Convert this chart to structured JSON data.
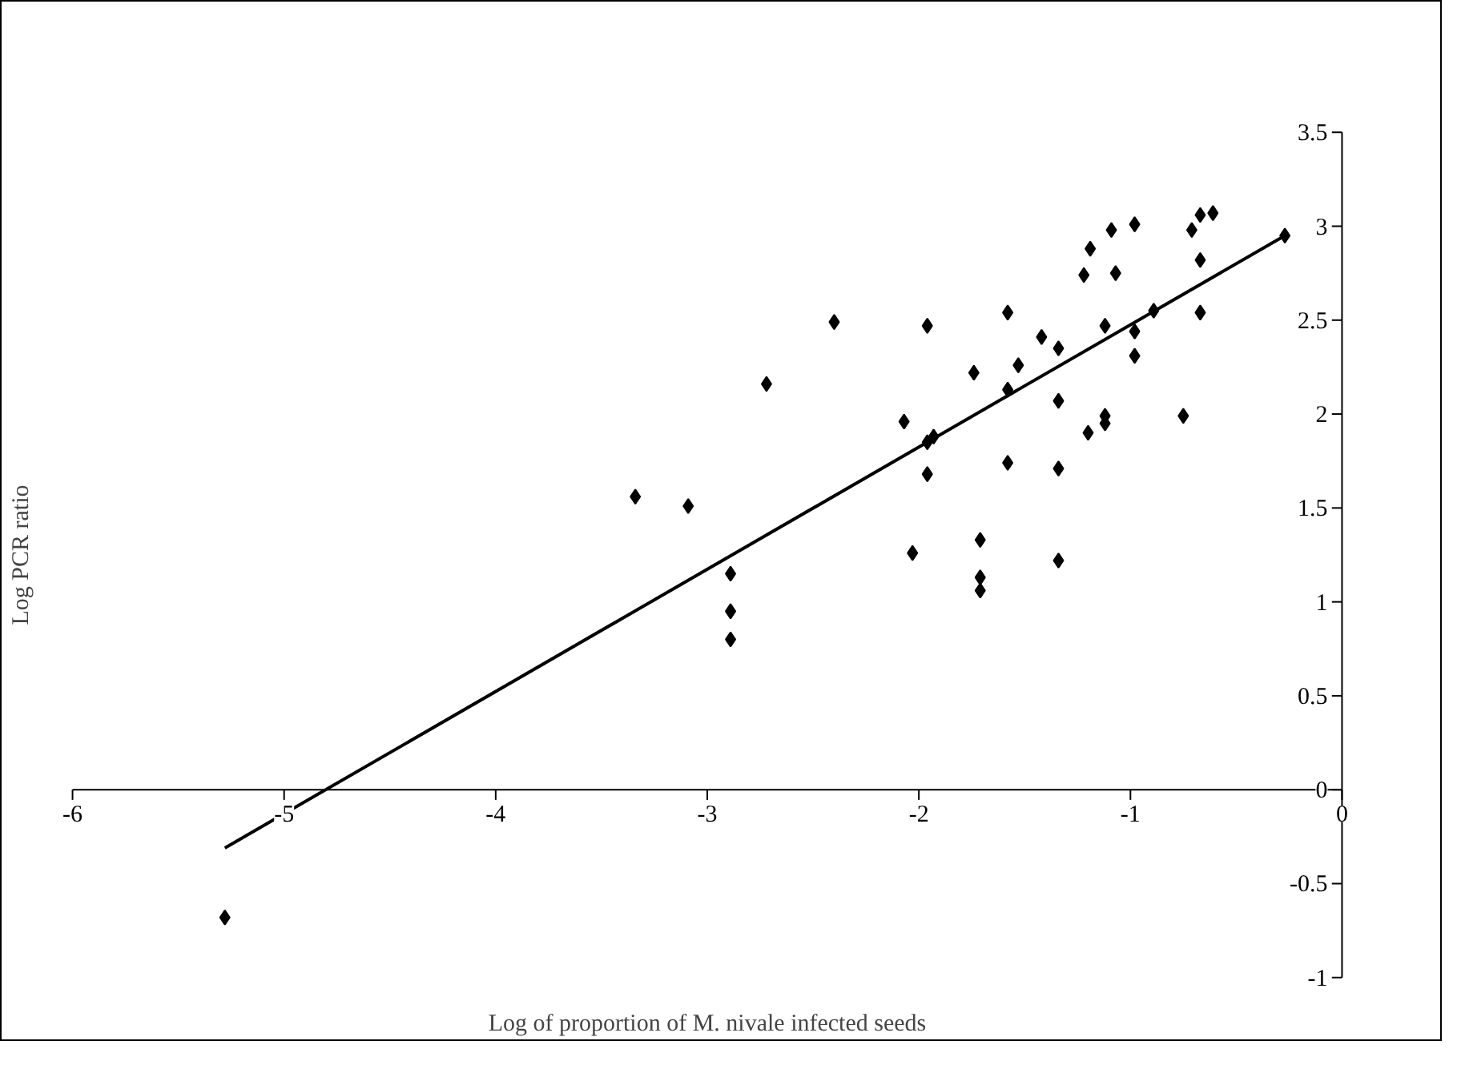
{
  "chart_data": {
    "type": "scatter",
    "xlabel": "Log of proportion of M. nivale infected seeds",
    "ylabel": "Log PCR ratio",
    "xlim": [
      -6,
      0
    ],
    "ylim": [
      -1,
      3.5
    ],
    "xticks": [
      -6,
      -5,
      -4,
      -3,
      -2,
      -1,
      0
    ],
    "yticks": [
      -1,
      -0.5,
      0,
      0.5,
      1,
      1.5,
      2,
      2.5,
      3,
      3.5
    ],
    "marker": "diamond",
    "series": [
      {
        "color": "#000000",
        "x": [
          -5.28,
          -3.34,
          -3.09,
          -2.89,
          -2.89,
          -2.89,
          -2.72,
          -2.4,
          -2.07,
          -2.03,
          -1.96,
          -1.96,
          -1.93,
          -1.96,
          -1.74,
          -1.71,
          -1.71,
          -1.71,
          -1.58,
          -1.58,
          -1.58,
          -1.53,
          -1.42,
          -1.34,
          -1.34,
          -1.34,
          -1.34,
          -1.22,
          -1.2,
          -1.19,
          -1.12,
          -1.12,
          -1.12,
          -1.09,
          -1.07,
          -0.98,
          -0.98,
          -0.98,
          -0.89,
          -0.75,
          -0.71,
          -0.67,
          -0.67,
          -0.67,
          -0.61,
          -0.27
        ],
        "values": [
          -0.68,
          1.56,
          1.51,
          1.15,
          0.95,
          0.8,
          2.16,
          2.49,
          1.96,
          1.26,
          2.47,
          1.85,
          1.88,
          1.68,
          2.22,
          1.33,
          1.13,
          1.06,
          2.54,
          2.13,
          1.74,
          2.26,
          2.41,
          2.35,
          2.07,
          1.71,
          1.22,
          2.74,
          1.9,
          2.88,
          2.47,
          1.99,
          1.95,
          2.98,
          2.75,
          3.01,
          2.44,
          2.31,
          2.55,
          1.99,
          2.98,
          3.06,
          2.82,
          2.54,
          3.07,
          2.95
        ]
      },
      {
        "type": "line",
        "color": "#000000",
        "marker": "none",
        "x": [
          -5.28,
          -0.27
        ],
        "values": [
          -0.31,
          2.95
        ]
      }
    ]
  }
}
